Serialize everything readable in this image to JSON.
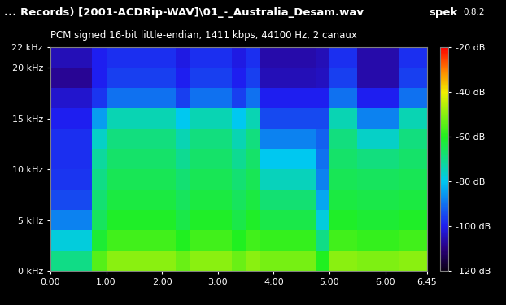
{
  "chart_data": {
    "type": "heatmap",
    "title": "... Records) [2001-ACDRip-WAV]\\01_-_Australia_Desam.wav",
    "subtitle": "PCM signed 16-bit little-endian, 1411 kbps, 44100 Hz, 2 canaux",
    "annotations": [
      "spek",
      "0.8.2"
    ],
    "xlim": [
      0,
      405
    ],
    "xticks": [
      {
        "value": 0,
        "label": "0:00"
      },
      {
        "value": 60,
        "label": "1:00"
      },
      {
        "value": 120,
        "label": "2:00"
      },
      {
        "value": 180,
        "label": "3:00"
      },
      {
        "value": 240,
        "label": "4:00"
      },
      {
        "value": 300,
        "label": "5:00"
      },
      {
        "value": 360,
        "label": "6:00"
      },
      {
        "value": 405,
        "label": "6:45"
      }
    ],
    "ylim": [
      0,
      22
    ],
    "yticks": [
      {
        "value": 0,
        "label": "0 kHz"
      },
      {
        "value": 5,
        "label": "5 kHz"
      },
      {
        "value": 10,
        "label": "10 kHz"
      },
      {
        "value": 15,
        "label": "15 kHz"
      },
      {
        "value": 20,
        "label": "20 kHz"
      },
      {
        "value": 22,
        "label": "22 kHz"
      }
    ],
    "time_edges": [
      0,
      15,
      30,
      45,
      60,
      75,
      90,
      105,
      120,
      135,
      150,
      165,
      180,
      195,
      210,
      225,
      240,
      255,
      270,
      285,
      300,
      315,
      330,
      345,
      360,
      375,
      390,
      405
    ],
    "freq_edges": [
      0,
      2,
      4,
      6,
      8,
      10,
      12,
      14,
      16,
      18,
      20,
      22
    ],
    "cells": [
      [
        -70,
        -70,
        -70,
        -55,
        -50,
        -50,
        -50,
        -50,
        -50,
        -53,
        -50,
        -50,
        -50,
        -53,
        -50,
        -52,
        -52,
        -52,
        -52,
        -60,
        -50,
        -50,
        -51,
        -51,
        -51,
        -50,
        -50
      ],
      [
        -78,
        -78,
        -78,
        -62,
        -57,
        -57,
        -57,
        -57,
        -57,
        -60,
        -57,
        -57,
        -57,
        -60,
        -57,
        -58,
        -58,
        -58,
        -58,
        -70,
        -57,
        -57,
        -58,
        -58,
        -58,
        -57,
        -57
      ],
      [
        -88,
        -88,
        -88,
        -66,
        -61,
        -61,
        -61,
        -61,
        -61,
        -64,
        -61,
        -61,
        -61,
        -64,
        -61,
        -64,
        -64,
        -64,
        -64,
        -78,
        -61,
        -61,
        -62,
        -62,
        -62,
        -61,
        -61
      ],
      [
        -95,
        -95,
        -95,
        -68,
        -63,
        -63,
        -63,
        -63,
        -63,
        -66,
        -63,
        -63,
        -63,
        -66,
        -63,
        -68,
        -68,
        -68,
        -68,
        -84,
        -63,
        -63,
        -64,
        -64,
        -64,
        -63,
        -63
      ],
      [
        -97,
        -97,
        -97,
        -70,
        -65,
        -65,
        -65,
        -65,
        -65,
        -68,
        -65,
        -65,
        -65,
        -68,
        -65,
        -75,
        -75,
        -75,
        -75,
        -88,
        -65,
        -65,
        -66,
        -66,
        -66,
        -65,
        -65
      ],
      [
        -98,
        -98,
        -98,
        -72,
        -67,
        -67,
        -67,
        -67,
        -67,
        -71,
        -67,
        -67,
        -67,
        -71,
        -67,
        -80,
        -80,
        -80,
        -80,
        -90,
        -67,
        -67,
        -69,
        -69,
        -69,
        -67,
        -67
      ],
      [
        -98,
        -98,
        -98,
        -76,
        -69,
        -69,
        -69,
        -69,
        -69,
        -74,
        -69,
        -69,
        -69,
        -74,
        -69,
        -88,
        -88,
        -88,
        -88,
        -92,
        -69,
        -69,
        -76,
        -76,
        -76,
        -69,
        -69
      ],
      [
        -100,
        -100,
        -100,
        -85,
        -74,
        -74,
        -74,
        -74,
        -74,
        -80,
        -74,
        -74,
        -74,
        -80,
        -74,
        -95,
        -95,
        -95,
        -95,
        -95,
        -74,
        -74,
        -88,
        -88,
        -88,
        -74,
        -74
      ],
      [
        -103,
        -103,
        -103,
        -97,
        -90,
        -90,
        -90,
        -90,
        -90,
        -96,
        -90,
        -90,
        -90,
        -96,
        -90,
        -100,
        -100,
        -100,
        -100,
        -100,
        -90,
        -90,
        -100,
        -100,
        -100,
        -90,
        -90
      ],
      [
        -108,
        -108,
        -108,
        -100,
        -96,
        -96,
        -96,
        -96,
        -96,
        -100,
        -96,
        -96,
        -96,
        -100,
        -96,
        -105,
        -105,
        -105,
        -105,
        -104,
        -96,
        -96,
        -106,
        -106,
        -106,
        -96,
        -96
      ],
      [
        -105,
        -105,
        -105,
        -100,
        -98,
        -98,
        -98,
        -98,
        -98,
        -101,
        -98,
        -98,
        -98,
        -101,
        -98,
        -106,
        -106,
        -106,
        -106,
        -105,
        -98,
        -98,
        -106,
        -106,
        -106,
        -98,
        -98
      ]
    ],
    "clim": [
      -120,
      -20
    ],
    "cticks": [
      {
        "value": -20,
        "label": "-20 dB"
      },
      {
        "value": -40,
        "label": "-40 dB"
      },
      {
        "value": -60,
        "label": "-60 dB"
      },
      {
        "value": -80,
        "label": "-80 dB"
      },
      {
        "value": -100,
        "label": "-100 dB"
      },
      {
        "value": -120,
        "label": "-120 dB"
      }
    ]
  }
}
